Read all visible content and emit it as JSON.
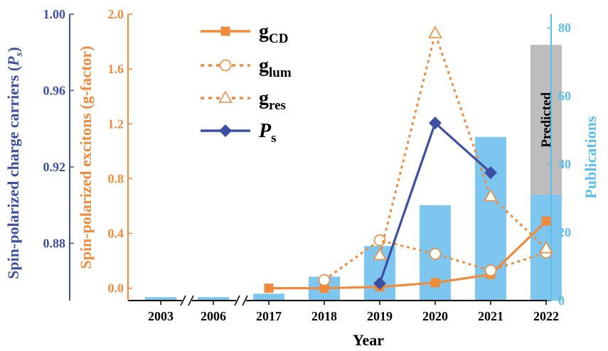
{
  "chart_data": {
    "type": "bar+line",
    "categories": [
      "2003",
      "2006",
      "2017",
      "2018",
      "2019",
      "2020",
      "2021",
      "2022"
    ],
    "xlabel": "Year",
    "axes": {
      "ps": {
        "label_main": "Spin-polarized charge carriers (",
        "label_sym": "P",
        "label_sub": "s",
        "label_end": ")",
        "ylim": [
          0.85,
          1.0
        ],
        "ticks": [
          "0.88",
          "0.92",
          "0.96",
          "1.00"
        ],
        "color": "#3D4FA0"
      },
      "g": {
        "label": "Spin-polarized excitons (g-factor)",
        "ylim": [
          -0.09,
          2.0
        ],
        "ticks": [
          "0.0",
          "0.4",
          "0.8",
          "1.2",
          "1.6",
          "2.0"
        ],
        "color": "#F08A3C"
      },
      "pub": {
        "label": "Publications",
        "ylim": [
          0,
          84
        ],
        "ticks": [
          "0",
          "20",
          "40",
          "60",
          "80"
        ],
        "color": "#5BBDEA"
      }
    },
    "publications": [
      1,
      1,
      2,
      7,
      16,
      28,
      48,
      31
    ],
    "predicted": {
      "label": "Predicted",
      "category": "2022",
      "value": 75,
      "color": "#BDBDBD"
    },
    "bar_color": "#7CC6EF",
    "series": [
      {
        "name_main": "g",
        "name_sub": "CD",
        "style": "solid-square",
        "color": "#F08A3C",
        "points": [
          [
            "2017",
            0.0
          ],
          [
            "2018",
            0.0
          ],
          [
            "2019",
            0.01
          ],
          [
            "2020",
            0.04
          ],
          [
            "2021",
            0.1
          ],
          [
            "2022",
            0.49
          ]
        ]
      },
      {
        "name_main": "g",
        "name_sub": "lum",
        "style": "dotted-circle",
        "color": "#F08A3C",
        "points": [
          [
            "2018",
            0.06
          ],
          [
            "2019",
            0.35
          ],
          [
            "2020",
            0.25
          ],
          [
            "2021",
            0.13
          ],
          [
            "2022",
            0.26
          ]
        ]
      },
      {
        "name_main": "g",
        "name_sub": "res",
        "style": "dotted-triangle",
        "color": "#F08A3C",
        "points": [
          [
            "2019",
            0.24
          ],
          [
            "2020",
            1.86
          ],
          [
            "2021",
            0.67
          ],
          [
            "2022",
            0.29
          ]
        ]
      },
      {
        "name_main": "P",
        "name_sub": "s",
        "style": "solid-diamond",
        "color": "#3D4FA0",
        "axis": "ps",
        "points": [
          [
            "2019",
            0.859
          ],
          [
            "2020",
            0.943
          ],
          [
            "2021",
            0.917
          ]
        ]
      }
    ],
    "axis_break_between": [
      [
        "2003",
        "2006"
      ],
      [
        "2006",
        "2017"
      ]
    ]
  }
}
